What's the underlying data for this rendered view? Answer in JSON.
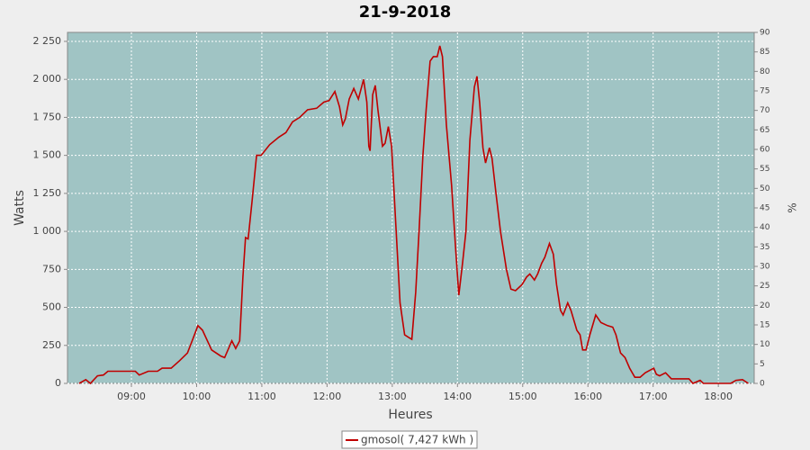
{
  "chart_data": {
    "type": "line",
    "title": "21-9-2018",
    "x_label": "Heures",
    "y_label": "Watts",
    "y2_label": "%",
    "grid": true,
    "legend": "bottom",
    "background": "#a0c4c4",
    "xlim": [
      8.02,
      18.55
    ],
    "xticks": [
      {
        "value": 9,
        "label": "09:00"
      },
      {
        "value": 10,
        "label": "10:00"
      },
      {
        "value": 11,
        "label": "11:00"
      },
      {
        "value": 12,
        "label": "12:00"
      },
      {
        "value": 13,
        "label": "13:00"
      },
      {
        "value": 14,
        "label": "14:00"
      },
      {
        "value": 15,
        "label": "15:00"
      },
      {
        "value": 16,
        "label": "16:00"
      },
      {
        "value": 17,
        "label": "17:00"
      },
      {
        "value": 18,
        "label": "18:00"
      }
    ],
    "ylim": [
      0,
      2309
    ],
    "yticks": [
      0,
      250,
      500,
      750,
      {
        "value": 1000,
        "label": "1 000"
      },
      {
        "value": 1250,
        "label": "1 250"
      },
      {
        "value": 1500,
        "label": "1 500"
      },
      {
        "value": 1750,
        "label": "1 750"
      },
      {
        "value": 2000,
        "label": "2 000"
      },
      {
        "value": 2250,
        "label": "2 250"
      }
    ],
    "y2lim": [
      0,
      90
    ],
    "y2ticks": [
      0,
      5,
      10,
      15,
      20,
      25,
      30,
      35,
      40,
      45,
      50,
      55,
      60,
      65,
      70,
      75,
      80,
      85,
      90
    ],
    "x": [
      8.2,
      8.3,
      8.37,
      8.48,
      8.57,
      8.64,
      8.92,
      9.06,
      9.12,
      9.26,
      9.4,
      9.47,
      9.61,
      9.74,
      9.86,
      9.95,
      10.02,
      10.09,
      10.23,
      10.37,
      10.43,
      10.54,
      10.6,
      10.66,
      10.71,
      10.75,
      10.79,
      10.85,
      10.92,
      10.99,
      11.12,
      11.26,
      11.37,
      11.47,
      11.58,
      11.7,
      11.84,
      11.95,
      12.03,
      12.12,
      12.19,
      12.24,
      12.28,
      12.34,
      12.41,
      12.48,
      12.56,
      12.61,
      12.64,
      12.66,
      12.7,
      12.74,
      12.78,
      12.85,
      12.89,
      12.94,
      12.99,
      13.06,
      13.12,
      13.19,
      13.26,
      13.3,
      13.36,
      13.41,
      13.47,
      13.52,
      13.58,
      13.63,
      13.69,
      13.73,
      13.77,
      13.83,
      13.91,
      13.97,
      14.02,
      14.08,
      14.13,
      14.19,
      14.26,
      14.3,
      14.34,
      14.39,
      14.43,
      14.49,
      14.53,
      14.59,
      14.66,
      14.75,
      14.82,
      14.89,
      14.99,
      15.06,
      15.11,
      15.18,
      15.23,
      15.29,
      15.34,
      15.41,
      15.47,
      15.52,
      15.58,
      15.62,
      15.69,
      15.74,
      15.83,
      15.88,
      15.92,
      15.97,
      16.03,
      16.12,
      16.2,
      16.3,
      16.38,
      16.43,
      16.5,
      16.57,
      16.64,
      16.72,
      16.8,
      16.88,
      17.01,
      17.05,
      17.1,
      17.19,
      17.28,
      17.36,
      17.55,
      17.61,
      17.72,
      17.77,
      17.88,
      18.19,
      18.27,
      18.37,
      18.46
    ],
    "series": [
      {
        "name": "gmosol( 7,427 kWh )",
        "color": "#c00000",
        "values": [
          0,
          25,
          0,
          50,
          55,
          80,
          80,
          80,
          55,
          80,
          80,
          100,
          100,
          150,
          200,
          300,
          380,
          350,
          220,
          180,
          170,
          280,
          230,
          280,
          700,
          960,
          950,
          1200,
          1500,
          1500,
          1570,
          1620,
          1650,
          1720,
          1750,
          1800,
          1810,
          1850,
          1860,
          1920,
          1820,
          1700,
          1740,
          1870,
          1940,
          1870,
          2000,
          1850,
          1560,
          1530,
          1900,
          1960,
          1800,
          1560,
          1580,
          1690,
          1560,
          1000,
          530,
          320,
          300,
          290,
          600,
          1000,
          1500,
          1800,
          2120,
          2150,
          2150,
          2220,
          2150,
          1700,
          1300,
          900,
          580,
          800,
          1000,
          1600,
          1950,
          2020,
          1850,
          1550,
          1450,
          1550,
          1480,
          1250,
          1000,
          750,
          620,
          610,
          650,
          700,
          720,
          680,
          720,
          790,
          830,
          920,
          850,
          650,
          480,
          450,
          530,
          480,
          350,
          320,
          220,
          220,
          320,
          450,
          400,
          380,
          370,
          320,
          200,
          170,
          100,
          40,
          40,
          70,
          100,
          60,
          50,
          70,
          30,
          30,
          30,
          0,
          20,
          0,
          0,
          0,
          20,
          25,
          0
        ]
      }
    ]
  }
}
